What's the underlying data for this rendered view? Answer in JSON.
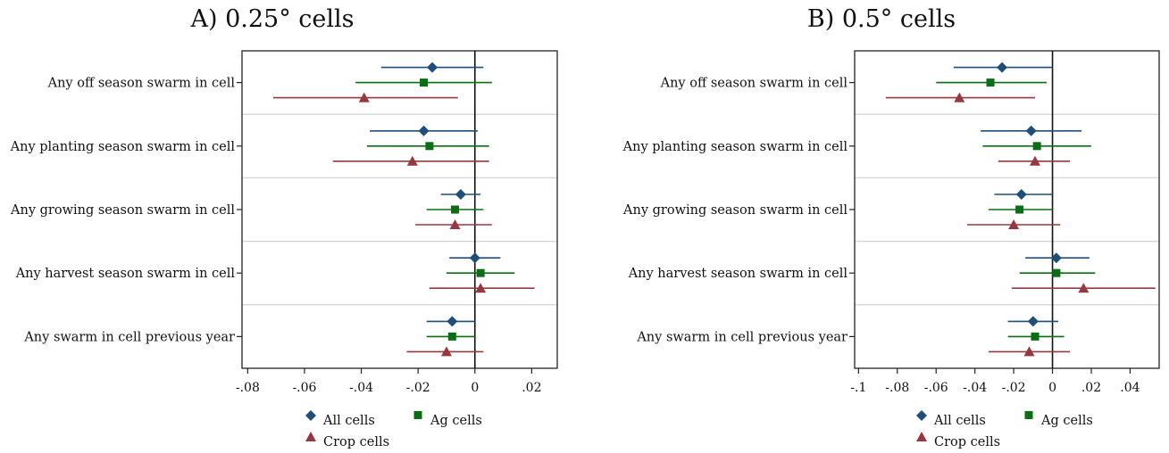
{
  "chart_data": [
    {
      "type": "dot-whisker",
      "title": "A) 0.25° cells",
      "categories": [
        "Any off season swarm in cell",
        "Any planting season swarm in cell",
        "Any growing season swarm in cell",
        "Any harvest season swarm in cell",
        "Any swarm in cell previous year"
      ],
      "xlim": [
        -0.082,
        0.029
      ],
      "xticks": [
        -0.08,
        -0.06,
        -0.04,
        -0.02,
        0,
        0.02
      ],
      "xtick_labels": [
        "-.08",
        "-.06",
        "-.04",
        "-.02",
        "0",
        ".02"
      ],
      "reference_line": 0,
      "series": [
        {
          "name": "All cells",
          "color": "#1f4e79",
          "marker": "diamond",
          "estimates": [
            -0.015,
            -0.018,
            -0.005,
            0.0,
            -0.008
          ],
          "ci_low": [
            -0.033,
            -0.037,
            -0.012,
            -0.009,
            -0.017
          ],
          "ci_high": [
            0.003,
            0.001,
            0.002,
            0.009,
            0.0
          ]
        },
        {
          "name": "Ag cells",
          "color": "#0b6e14",
          "marker": "square",
          "estimates": [
            -0.018,
            -0.016,
            -0.007,
            0.002,
            -0.008
          ],
          "ci_low": [
            -0.042,
            -0.038,
            -0.017,
            -0.01,
            -0.017
          ],
          "ci_high": [
            0.006,
            0.005,
            0.003,
            0.014,
            0.0
          ]
        },
        {
          "name": "Crop cells",
          "color": "#963840",
          "marker": "triangle",
          "estimates": [
            -0.039,
            -0.022,
            -0.007,
            0.002,
            -0.01
          ],
          "ci_low": [
            -0.071,
            -0.05,
            -0.021,
            -0.016,
            -0.024
          ],
          "ci_high": [
            -0.006,
            0.005,
            0.006,
            0.021,
            0.003
          ]
        }
      ],
      "legend": {
        "position": "bottom",
        "entries": [
          "All cells",
          "Ag cells",
          "Crop cells"
        ]
      },
      "grid": "horizontal separators between categories"
    },
    {
      "type": "dot-whisker",
      "title": "B) 0.5° cells",
      "categories": [
        "Any off season swarm in cell",
        "Any planting season swarm in cell",
        "Any growing season swarm in cell",
        "Any harvest season swarm in cell",
        "Any swarm in cell previous year"
      ],
      "xlim": [
        -0.102,
        0.055
      ],
      "xticks": [
        -0.1,
        -0.08,
        -0.06,
        -0.04,
        -0.02,
        0,
        0.02,
        0.04
      ],
      "xtick_labels": [
        "-.1",
        "-.08",
        "-.06",
        "-.04",
        "-.02",
        "0",
        ".02",
        ".04"
      ],
      "reference_line": 0,
      "series": [
        {
          "name": "All cells",
          "color": "#1f4e79",
          "marker": "diamond",
          "estimates": [
            -0.026,
            -0.011,
            -0.016,
            0.002,
            -0.01
          ],
          "ci_low": [
            -0.051,
            -0.037,
            -0.03,
            -0.014,
            -0.023
          ],
          "ci_high": [
            0.0,
            0.015,
            0.0,
            0.019,
            0.003
          ]
        },
        {
          "name": "Ag cells",
          "color": "#0b6e14",
          "marker": "square",
          "estimates": [
            -0.032,
            -0.008,
            -0.017,
            0.002,
            -0.009
          ],
          "ci_low": [
            -0.06,
            -0.036,
            -0.033,
            -0.017,
            -0.023
          ],
          "ci_high": [
            -0.003,
            0.02,
            0.0,
            0.022,
            0.006
          ]
        },
        {
          "name": "Crop cells",
          "color": "#963840",
          "marker": "triangle",
          "estimates": [
            -0.048,
            -0.009,
            -0.02,
            0.016,
            -0.012
          ],
          "ci_low": [
            -0.086,
            -0.028,
            -0.044,
            -0.021,
            -0.033
          ],
          "ci_high": [
            -0.009,
            0.009,
            0.004,
            0.053,
            0.009
          ]
        }
      ],
      "legend": {
        "position": "bottom",
        "entries": [
          "All cells",
          "Ag cells",
          "Crop cells"
        ]
      },
      "grid": "horizontal separators between categories"
    }
  ]
}
